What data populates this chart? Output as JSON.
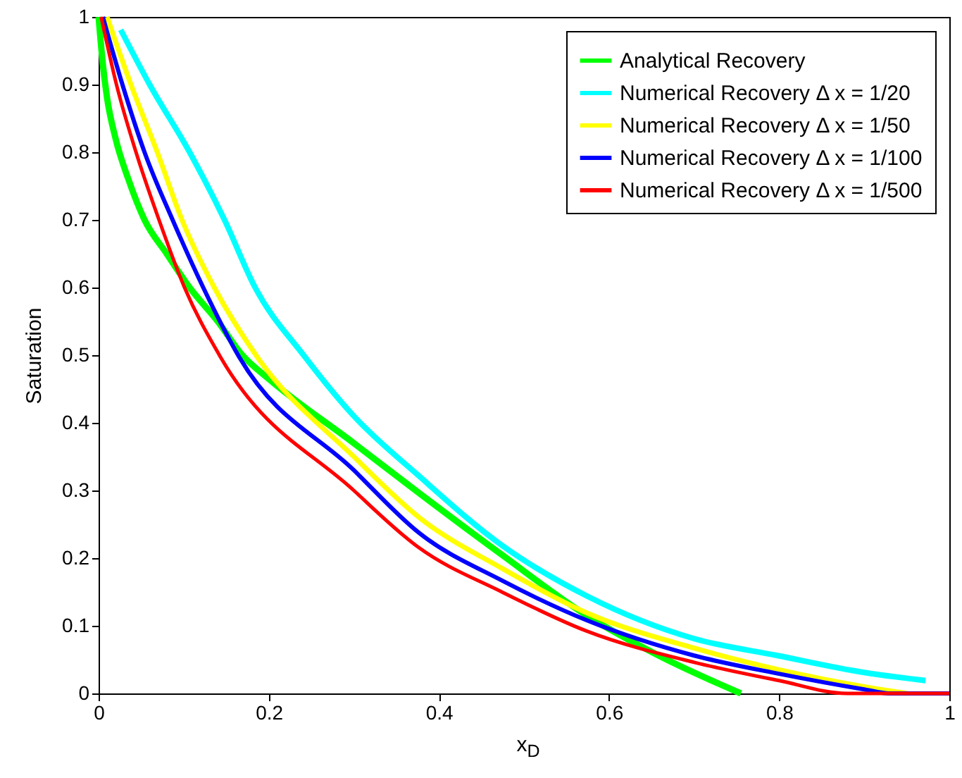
{
  "chart_data": {
    "type": "line",
    "xlabel": "x$_{D}$",
    "ylabel": "Saturation",
    "xlim": [
      0,
      1
    ],
    "ylim": [
      0,
      1
    ],
    "xticks": [
      0,
      0.2,
      0.4,
      0.6,
      0.8,
      1
    ],
    "yticks": [
      0,
      0.1,
      0.2,
      0.3,
      0.4,
      0.5,
      0.6,
      0.7,
      0.8,
      0.9,
      1
    ],
    "grid": false,
    "legend": "top right",
    "line_style": "solid",
    "marker": "none",
    "series": [
      {
        "name": "Analytical Recovery",
        "color": "#00ff00",
        "x": [
          0,
          0.005,
          0.01,
          0.02,
          0.035,
          0.054,
          0.08,
          0.107,
          0.14,
          0.169,
          0.2,
          0.3,
          0.377,
          0.474,
          0.574,
          0.66,
          0.755
        ],
        "values": [
          1,
          0.93,
          0.88,
          0.82,
          0.76,
          0.7,
          0.65,
          0.6,
          0.55,
          0.5,
          0.465,
          0.37,
          0.296,
          0.205,
          0.115,
          0.055,
          0
        ]
      },
      {
        "name": "Numerical Recovery Δ x = 1/20",
        "color": "#00ffff",
        "x": [
          0.026,
          0.06,
          0.107,
          0.148,
          0.184,
          0.241,
          0.3,
          0.377,
          0.474,
          0.574,
          0.7,
          0.798,
          0.9,
          0.972
        ],
        "values": [
          0.981,
          0.9,
          0.8,
          0.7,
          0.6,
          0.5,
          0.41,
          0.321,
          0.219,
          0.144,
          0.081,
          0.056,
          0.031,
          0.019
        ]
      },
      {
        "name": "Numerical Recovery Δ x = 1/50",
        "color": "#ffff00",
        "x": [
          0.01,
          0.038,
          0.069,
          0.098,
          0.136,
          0.185,
          0.3,
          0.377,
          0.474,
          0.574,
          0.7,
          0.8,
          0.9,
          0.95
        ],
        "values": [
          1,
          0.9,
          0.8,
          0.7,
          0.6,
          0.5,
          0.35,
          0.26,
          0.185,
          0.119,
          0.067,
          0.035,
          0.01,
          0
        ]
      },
      {
        "name": "Numerical Recovery Δ x = 1/100",
        "color": "#0000ff",
        "x": [
          0.005,
          0.028,
          0.054,
          0.087,
          0.123,
          0.164,
          0.3,
          0.377,
          0.474,
          0.574,
          0.7,
          0.8,
          0.9,
          0.93,
          1
        ],
        "values": [
          1,
          0.9,
          0.8,
          0.7,
          0.6,
          0.5,
          0.33,
          0.237,
          0.167,
          0.108,
          0.056,
          0.029,
          0.006,
          0,
          0
        ]
      },
      {
        "name": "Numerical Recovery Δ x = 1/500",
        "color": "#ff0000",
        "x": [
          0.003,
          0.021,
          0.044,
          0.071,
          0.101,
          0.142,
          0.3,
          0.377,
          0.474,
          0.574,
          0.7,
          0.8,
          0.88,
          1
        ],
        "values": [
          1,
          0.9,
          0.8,
          0.7,
          0.6,
          0.5,
          0.3,
          0.215,
          0.15,
          0.092,
          0.046,
          0.019,
          0,
          0
        ]
      }
    ]
  }
}
